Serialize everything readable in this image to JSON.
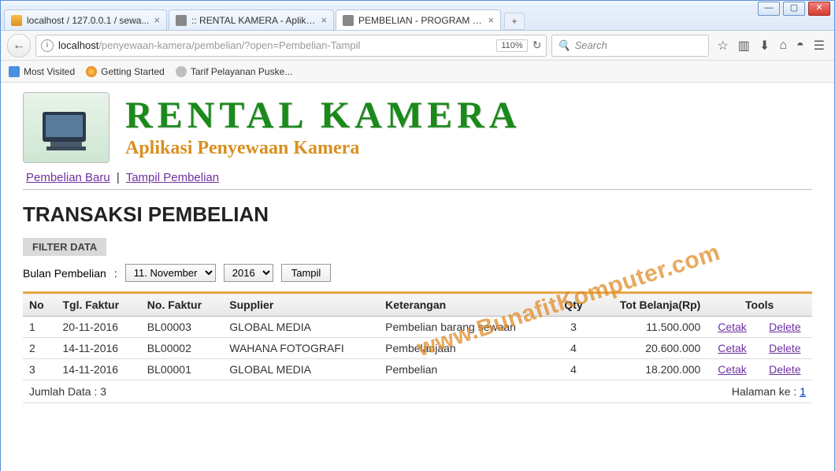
{
  "window": {
    "tabs": [
      {
        "label": "localhost / 127.0.0.1 / sewa...",
        "favicon": "pma",
        "active": false
      },
      {
        "label": ":: RENTAL KAMERA - Aplikasi P...",
        "favicon": "",
        "active": false
      },
      {
        "label": "PEMBELIAN - PROGRAM RENT...",
        "favicon": "",
        "active": true
      }
    ],
    "url_host": "localhost",
    "url_path": "/penyewaan-kamera/pembelian/?open=Pembelian-Tampil",
    "zoom": "110%",
    "search_placeholder": "Search"
  },
  "bookmarks": [
    {
      "label": "Most Visited",
      "icon": "mv"
    },
    {
      "label": "Getting Started",
      "icon": "ff"
    },
    {
      "label": "Tarif Pelayanan Puske...",
      "icon": "gl"
    }
  ],
  "brand": {
    "title": "RENTAL KAMERA",
    "subtitle": "Aplikasi Penyewaan Kamera"
  },
  "nav": {
    "link1": "Pembelian Baru",
    "link2": "Tampil Pembelian"
  },
  "section_title": "TRANSAKSI PEMBELIAN",
  "filter": {
    "badge": "FILTER DATA",
    "label": "Bulan Pembelian",
    "month": "11. November",
    "year": "2016",
    "button": "Tampil"
  },
  "table": {
    "headers": {
      "no": "No",
      "tgl": "Tgl. Faktur",
      "faktur": "No. Faktur",
      "supplier": "Supplier",
      "ket": "Keterangan",
      "qty": "Qty",
      "tot": "Tot Belanja(Rp)",
      "tools": "Tools"
    },
    "rows": [
      {
        "no": "1",
        "tgl": "20-11-2016",
        "faktur": "BL00003",
        "supplier": "GLOBAL MEDIA",
        "ket": "Pembelian barang sewaan",
        "qty": "3",
        "tot": "11.500.000"
      },
      {
        "no": "2",
        "tgl": "14-11-2016",
        "faktur": "BL00002",
        "supplier": "WAHANA FOTOGRAFI",
        "ket": "Pembelanjaan",
        "qty": "4",
        "tot": "20.600.000"
      },
      {
        "no": "3",
        "tgl": "14-11-2016",
        "faktur": "BL00001",
        "supplier": "GLOBAL MEDIA",
        "ket": "Pembelian",
        "qty": "4",
        "tot": "18.200.000"
      }
    ],
    "action_cetak": "Cetak",
    "action_delete": "Delete",
    "footer_count_label": "Jumlah Data : ",
    "footer_count": "3",
    "footer_page_label": "Halaman ke : ",
    "footer_page": "1"
  },
  "watermark": "www.BunafitKomputer.com"
}
